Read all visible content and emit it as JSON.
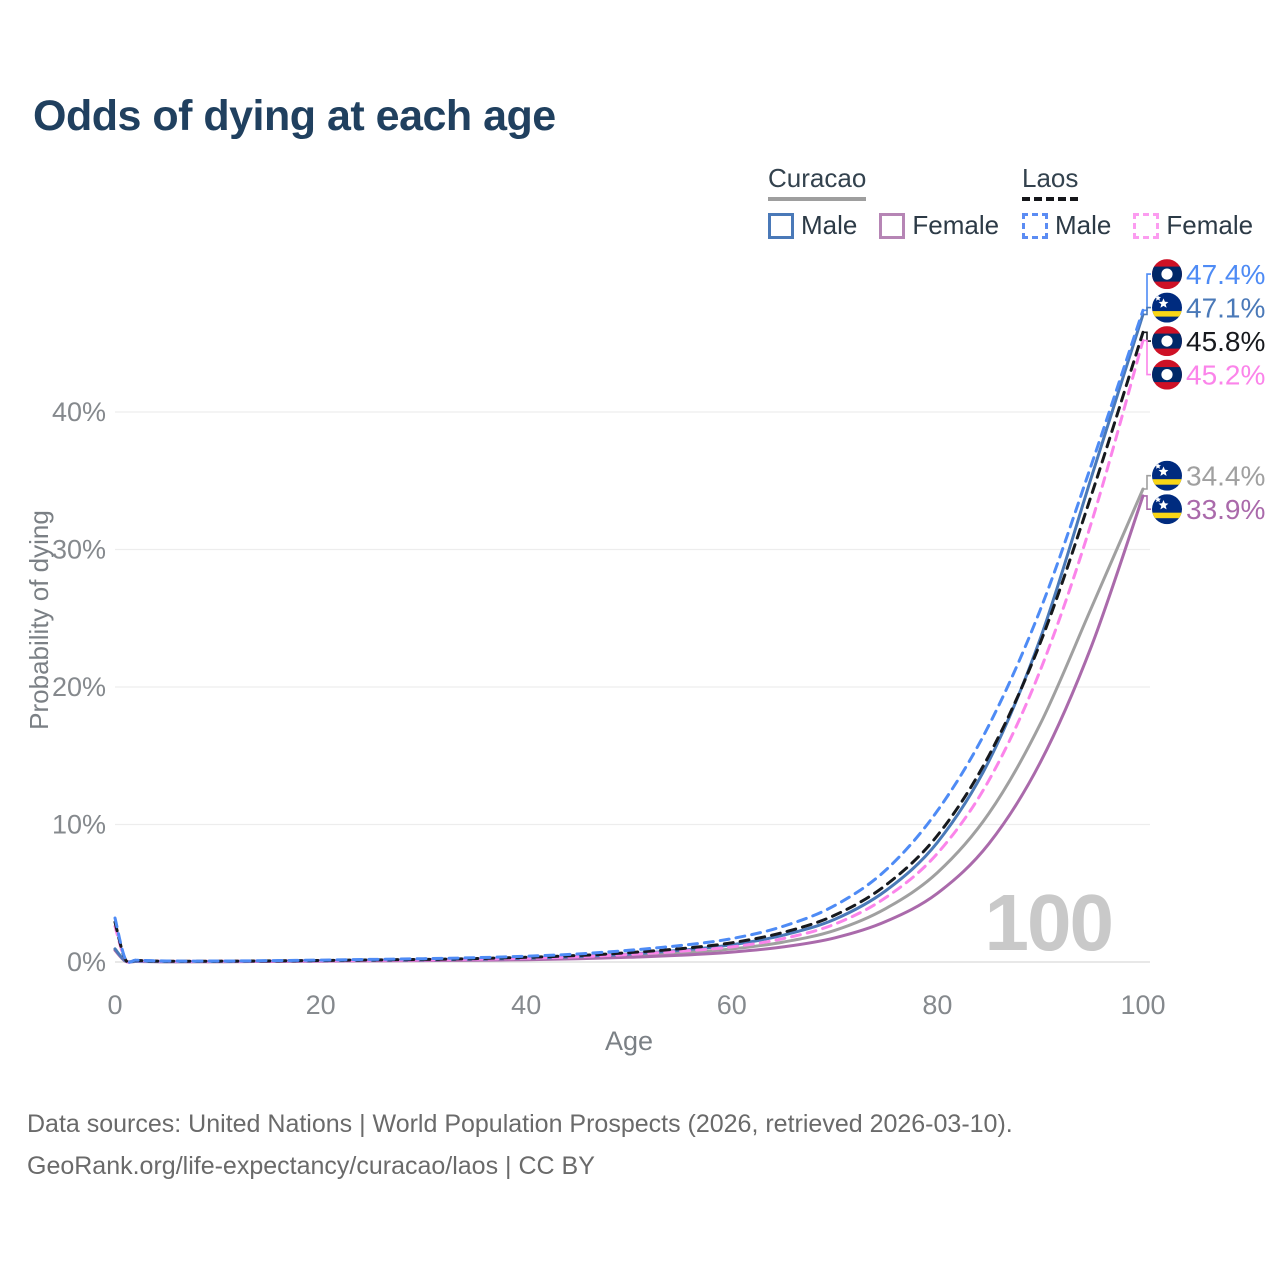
{
  "watermark": "100",
  "legend": {
    "groups": [
      {
        "title": "Curacao",
        "line_style": "solid",
        "underline_color": "#9e9e9e",
        "items": [
          {
            "label": "Male",
            "color": "#4a79b8"
          },
          {
            "label": "Female",
            "color": "#b685b5"
          }
        ]
      },
      {
        "title": "Laos",
        "line_style": "dashed",
        "underline_color": "#15161a",
        "items": [
          {
            "label": "Male",
            "color": "#5b8cf3"
          },
          {
            "label": "Female",
            "color": "#fc9cf0"
          }
        ]
      }
    ]
  },
  "footer": {
    "line1": "Data sources: United Nations | World Population Prospects (2026, retrieved 2026-03-10).",
    "line2": "GeoRank.org/life-expectancy/curacao/laos | CC BY"
  },
  "chart_data": {
    "type": "line",
    "title": "Odds of dying at each age",
    "xlabel": "Age",
    "ylabel": "Probability of dying",
    "x_ticks": [
      0,
      20,
      40,
      60,
      80,
      100
    ],
    "y_ticks": [
      "0%",
      "10%",
      "20%",
      "30%",
      "40%"
    ],
    "xlim": [
      0,
      100
    ],
    "ylim_pct": [
      0,
      50
    ],
    "grid": "horizontal",
    "legend_position": "top-right",
    "selected_age_watermark": "100",
    "series": [
      {
        "id": "laos-male",
        "country": "Laos",
        "sex": "male",
        "color": "#4e8bf5",
        "dash": true,
        "flag": "laos",
        "end_label": "47.4%",
        "end_value_pct": 47.4,
        "points": [
          [
            0,
            3.2
          ],
          [
            1,
            0.22
          ],
          [
            2,
            0.14
          ],
          [
            3,
            0.11
          ],
          [
            5,
            0.07
          ],
          [
            10,
            0.07
          ],
          [
            15,
            0.1
          ],
          [
            20,
            0.14
          ],
          [
            25,
            0.19
          ],
          [
            30,
            0.24
          ],
          [
            35,
            0.31
          ],
          [
            40,
            0.42
          ],
          [
            45,
            0.58
          ],
          [
            50,
            0.85
          ],
          [
            55,
            1.2
          ],
          [
            60,
            1.7
          ],
          [
            65,
            2.6
          ],
          [
            70,
            4.1
          ],
          [
            75,
            6.7
          ],
          [
            80,
            11.0
          ],
          [
            85,
            17.2
          ],
          [
            90,
            25.6
          ],
          [
            95,
            36.2
          ],
          [
            100,
            47.4
          ]
        ]
      },
      {
        "id": "curacao-male",
        "country": "Curacao",
        "sex": "male",
        "color": "#4a79b8",
        "dash": false,
        "flag": "curacao",
        "end_label": "47.1%",
        "end_value_pct": 47.1,
        "points": [
          [
            0,
            0.95
          ],
          [
            1,
            0.08
          ],
          [
            2,
            0.05
          ],
          [
            3,
            0.04
          ],
          [
            5,
            0.03
          ],
          [
            10,
            0.04
          ],
          [
            15,
            0.07
          ],
          [
            20,
            0.1
          ],
          [
            25,
            0.13
          ],
          [
            30,
            0.16
          ],
          [
            35,
            0.21
          ],
          [
            40,
            0.28
          ],
          [
            45,
            0.4
          ],
          [
            50,
            0.58
          ],
          [
            55,
            0.85
          ],
          [
            60,
            1.25
          ],
          [
            65,
            1.95
          ],
          [
            70,
            3.1
          ],
          [
            75,
            5.2
          ],
          [
            80,
            8.7
          ],
          [
            85,
            14.6
          ],
          [
            90,
            23.5
          ],
          [
            95,
            35.3
          ],
          [
            100,
            47.1
          ]
        ]
      },
      {
        "id": "laos-combined",
        "country": "Laos",
        "sex": "combined",
        "color": "#17191d",
        "dash": true,
        "flag": "laos",
        "end_label": "45.8%",
        "end_value_pct": 45.8,
        "points": [
          [
            0,
            2.9
          ],
          [
            1,
            0.19
          ],
          [
            2,
            0.12
          ],
          [
            3,
            0.09
          ],
          [
            5,
            0.06
          ],
          [
            10,
            0.06
          ],
          [
            15,
            0.08
          ],
          [
            20,
            0.11
          ],
          [
            25,
            0.15
          ],
          [
            30,
            0.19
          ],
          [
            35,
            0.25
          ],
          [
            40,
            0.34
          ],
          [
            45,
            0.47
          ],
          [
            50,
            0.68
          ],
          [
            55,
            0.97
          ],
          [
            60,
            1.4
          ],
          [
            65,
            2.15
          ],
          [
            70,
            3.4
          ],
          [
            75,
            5.6
          ],
          [
            80,
            9.2
          ],
          [
            85,
            15.0
          ],
          [
            90,
            23.2
          ],
          [
            95,
            34.0
          ],
          [
            100,
            45.8
          ]
        ]
      },
      {
        "id": "laos-female",
        "country": "Laos",
        "sex": "female",
        "color": "#fb84ea",
        "dash": true,
        "flag": "laos",
        "end_label": "45.2%",
        "end_value_pct": 45.2,
        "points": [
          [
            0,
            2.6
          ],
          [
            1,
            0.17
          ],
          [
            2,
            0.11
          ],
          [
            3,
            0.08
          ],
          [
            5,
            0.05
          ],
          [
            10,
            0.05
          ],
          [
            15,
            0.07
          ],
          [
            20,
            0.09
          ],
          [
            25,
            0.12
          ],
          [
            30,
            0.15
          ],
          [
            35,
            0.2
          ],
          [
            40,
            0.27
          ],
          [
            45,
            0.38
          ],
          [
            50,
            0.55
          ],
          [
            55,
            0.78
          ],
          [
            60,
            1.1
          ],
          [
            65,
            1.7
          ],
          [
            70,
            2.75
          ],
          [
            75,
            4.7
          ],
          [
            80,
            7.9
          ],
          [
            85,
            13.2
          ],
          [
            90,
            21.2
          ],
          [
            95,
            32.0
          ],
          [
            100,
            45.2
          ]
        ]
      },
      {
        "id": "curacao-combined",
        "country": "Curacao",
        "sex": "combined",
        "color": "#a0a0a0",
        "dash": false,
        "flag": "curacao",
        "end_label": "34.4%",
        "end_value_pct": 34.4,
        "points": [
          [
            0,
            0.9
          ],
          [
            1,
            0.07
          ],
          [
            2,
            0.045
          ],
          [
            3,
            0.035
          ],
          [
            5,
            0.025
          ],
          [
            10,
            0.03
          ],
          [
            15,
            0.05
          ],
          [
            20,
            0.08
          ],
          [
            25,
            0.1
          ],
          [
            30,
            0.13
          ],
          [
            35,
            0.17
          ],
          [
            40,
            0.22
          ],
          [
            45,
            0.31
          ],
          [
            50,
            0.45
          ],
          [
            55,
            0.65
          ],
          [
            60,
            0.95
          ],
          [
            65,
            1.45
          ],
          [
            70,
            2.3
          ],
          [
            75,
            3.9
          ],
          [
            80,
            6.5
          ],
          [
            85,
            10.8
          ],
          [
            90,
            17.3
          ],
          [
            95,
            25.8
          ],
          [
            100,
            34.4
          ]
        ]
      },
      {
        "id": "curacao-female",
        "country": "Curacao",
        "sex": "female",
        "color": "#aa6aab",
        "dash": false,
        "flag": "curacao",
        "end_label": "33.9%",
        "end_value_pct": 33.9,
        "points": [
          [
            0,
            0.85
          ],
          [
            1,
            0.06
          ],
          [
            2,
            0.04
          ],
          [
            3,
            0.03
          ],
          [
            5,
            0.02
          ],
          [
            10,
            0.025
          ],
          [
            15,
            0.04
          ],
          [
            20,
            0.06
          ],
          [
            25,
            0.08
          ],
          [
            30,
            0.1
          ],
          [
            35,
            0.13
          ],
          [
            40,
            0.17
          ],
          [
            45,
            0.24
          ],
          [
            50,
            0.34
          ],
          [
            55,
            0.49
          ],
          [
            60,
            0.72
          ],
          [
            65,
            1.1
          ],
          [
            70,
            1.75
          ],
          [
            75,
            2.95
          ],
          [
            80,
            5.0
          ],
          [
            85,
            8.6
          ],
          [
            90,
            14.5
          ],
          [
            95,
            23.0
          ],
          [
            100,
            33.9
          ]
        ]
      }
    ]
  }
}
